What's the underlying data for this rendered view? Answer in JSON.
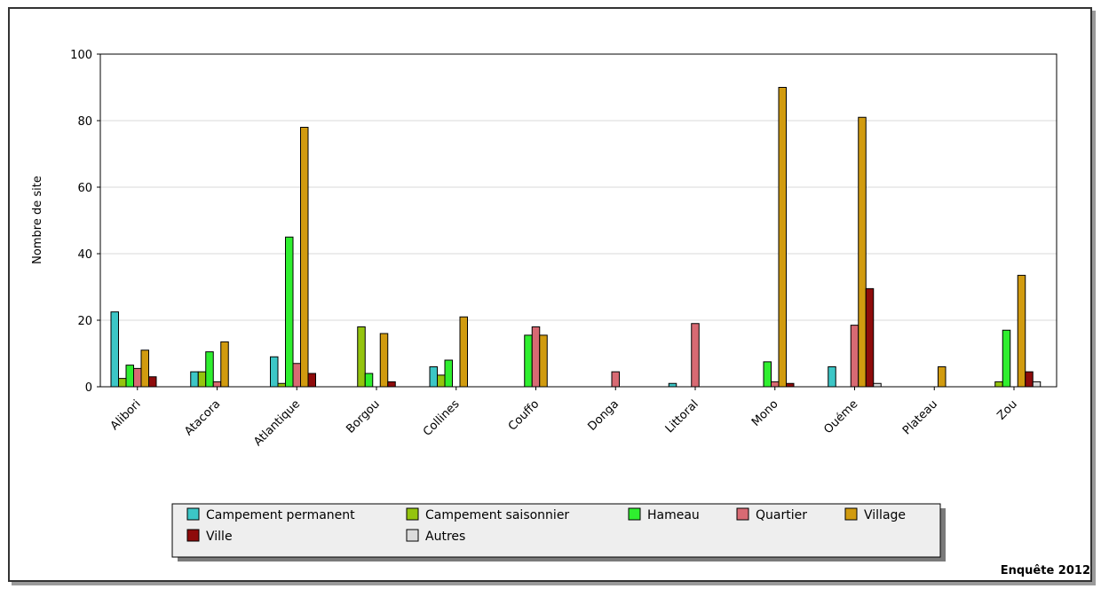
{
  "chart_data": {
    "type": "bar",
    "ylabel": "Nombre de site",
    "xlabel": "",
    "ylim": [
      0,
      100
    ],
    "yticks": [
      0,
      20,
      40,
      60,
      80,
      100
    ],
    "grid": true,
    "legend_position": "bottom",
    "categories": [
      "Alibori",
      "Atacora",
      "Atlantique",
      "Borgou",
      "Collines",
      "Couffo",
      "Donga",
      "Littoral",
      "Mono",
      "Ouéme",
      "Plateau",
      "Zou"
    ],
    "series": [
      {
        "name": "Campement permanent",
        "color": "#3cc6c6",
        "values": [
          22.5,
          4.5,
          9,
          0,
          6,
          0,
          0,
          1,
          0,
          6,
          0,
          0
        ]
      },
      {
        "name": "Campement saisonnier",
        "color": "#94c40e",
        "values": [
          2.5,
          4.5,
          1,
          18,
          3.5,
          0,
          0,
          0,
          0,
          0,
          0,
          1.5
        ]
      },
      {
        "name": "Hameau",
        "color": "#2fef2f",
        "values": [
          6.5,
          10.5,
          45,
          4,
          8,
          15.5,
          0,
          0,
          7.5,
          0,
          0,
          17
        ]
      },
      {
        "name": "Quartier",
        "color": "#d86a73",
        "values": [
          5.5,
          1.5,
          7,
          0,
          0,
          18,
          4.5,
          19,
          1.5,
          18.5,
          0,
          0
        ]
      },
      {
        "name": "Village",
        "color": "#d19b0f",
        "values": [
          11,
          13.5,
          78,
          16,
          21,
          15.5,
          0,
          0,
          90,
          81,
          6,
          33.5
        ]
      },
      {
        "name": "Ville",
        "color": "#8e0b0b",
        "values": [
          3,
          0,
          4,
          1.5,
          0,
          0,
          0,
          0,
          1,
          29.5,
          0,
          4.5
        ]
      },
      {
        "name": "Autres",
        "color": "#dcdcdc",
        "values": [
          0,
          0,
          0,
          0,
          0,
          0,
          0,
          0,
          0,
          1,
          0,
          1.5
        ]
      }
    ]
  },
  "footer": "Enquête 2012"
}
